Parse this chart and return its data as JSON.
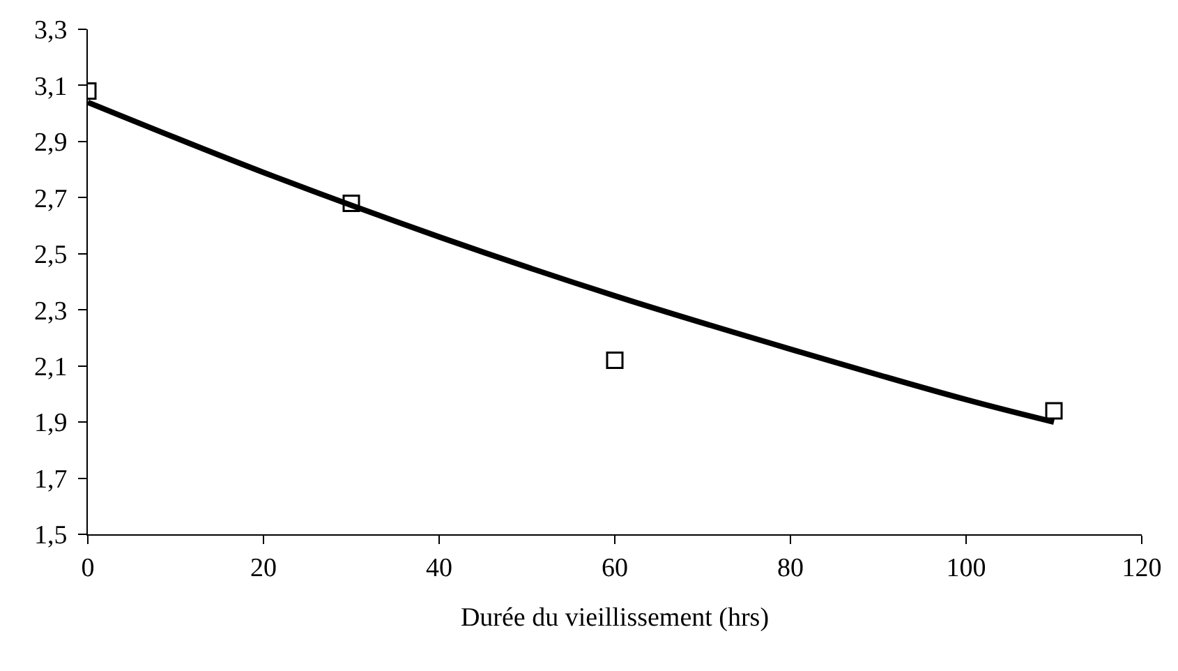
{
  "chart_data": {
    "type": "scatter",
    "xlabel": "Durée du vieillissement (hrs)",
    "series": [
      {
        "color": "#000000",
        "marker": "square",
        "x": [
          0,
          30,
          60,
          110
        ],
        "values": [
          3.08,
          2.68,
          2.12,
          1.94
        ]
      },
      {
        "type": "line",
        "color": "#000000",
        "marker": "none",
        "x": [
          0,
          20,
          40,
          60,
          80,
          100,
          110
        ],
        "values": [
          3.04,
          2.79,
          2.56,
          2.35,
          2.16,
          1.98,
          1.9
        ]
      }
    ],
    "xlim": [
      0,
      120
    ],
    "xticks": [
      0,
      20,
      40,
      60,
      80,
      100,
      120
    ],
    "ylim": [
      1.5,
      3.3
    ],
    "yticks": [
      {
        "value": 1.5,
        "label": "1,5"
      },
      {
        "value": 1.7,
        "label": "1,7"
      },
      {
        "value": 1.9,
        "label": "1,9"
      },
      {
        "value": 2.1,
        "label": "2,1"
      },
      {
        "value": 2.3,
        "label": "2,3"
      },
      {
        "value": 2.5,
        "label": "2,5"
      },
      {
        "value": 2.7,
        "label": "2,7"
      },
      {
        "value": 2.9,
        "label": "2,9"
      },
      {
        "value": 3.1,
        "label": "3,1"
      },
      {
        "value": 3.3,
        "label": "3,3"
      }
    ],
    "tick_labels": "xy"
  }
}
